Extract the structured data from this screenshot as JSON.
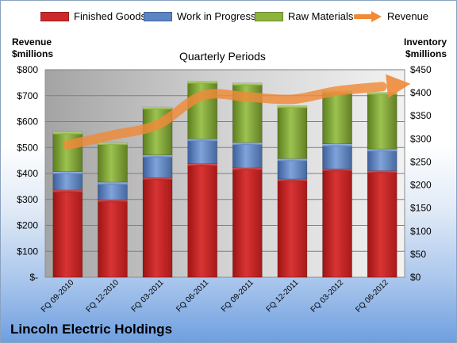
{
  "chart_data": {
    "type": "bar",
    "stacked": true,
    "title": "Quarterly Periods",
    "left_axis_title_line1": "Revenue",
    "left_axis_title_line2": "$millions",
    "right_axis_title_line1": "Inventory",
    "right_axis_title_line2": "$millions",
    "caption": "Lincoln Electric Holdings",
    "categories": [
      "FQ 09-2010",
      "FQ 12-2010",
      "FQ 03-2011",
      "FQ 06-2011",
      "FQ 09-2011",
      "FQ 12-2011",
      "FQ 03-2012",
      "FQ 06-2012"
    ],
    "series": [
      {
        "name": "Finished Goods",
        "axis": "right",
        "color": "#cc2a2a",
        "values": [
          189,
          168,
          216,
          246,
          237,
          213,
          235,
          231
        ]
      },
      {
        "name": "Work in Progress",
        "axis": "right",
        "color": "#5b84c4",
        "values": [
          40,
          38,
          49,
          54,
          55,
          44,
          54,
          47
        ]
      },
      {
        "name": "Raw Materials",
        "axis": "right",
        "color": "#8cb43c",
        "values": [
          86,
          86,
          104,
          125,
          129,
          115,
          115,
          123
        ]
      }
    ],
    "line_series": {
      "name": "Revenue",
      "axis": "left",
      "color": "#f08a38",
      "values": [
        510,
        548,
        588,
        700,
        695,
        686,
        718,
        735
      ]
    },
    "left_axis": {
      "min": 0,
      "max": 800,
      "step": 100,
      "ticks": [
        "$-",
        "$100",
        "$200",
        "$300",
        "$400",
        "$500",
        "$600",
        "$700",
        "$800"
      ]
    },
    "right_axis": {
      "min": 0,
      "max": 450,
      "step": 50,
      "ticks": [
        "$0",
        "$50",
        "$100",
        "$150",
        "$200",
        "$250",
        "$300",
        "$350",
        "$400",
        "$450"
      ]
    },
    "grid": true,
    "legend_position": "top"
  }
}
